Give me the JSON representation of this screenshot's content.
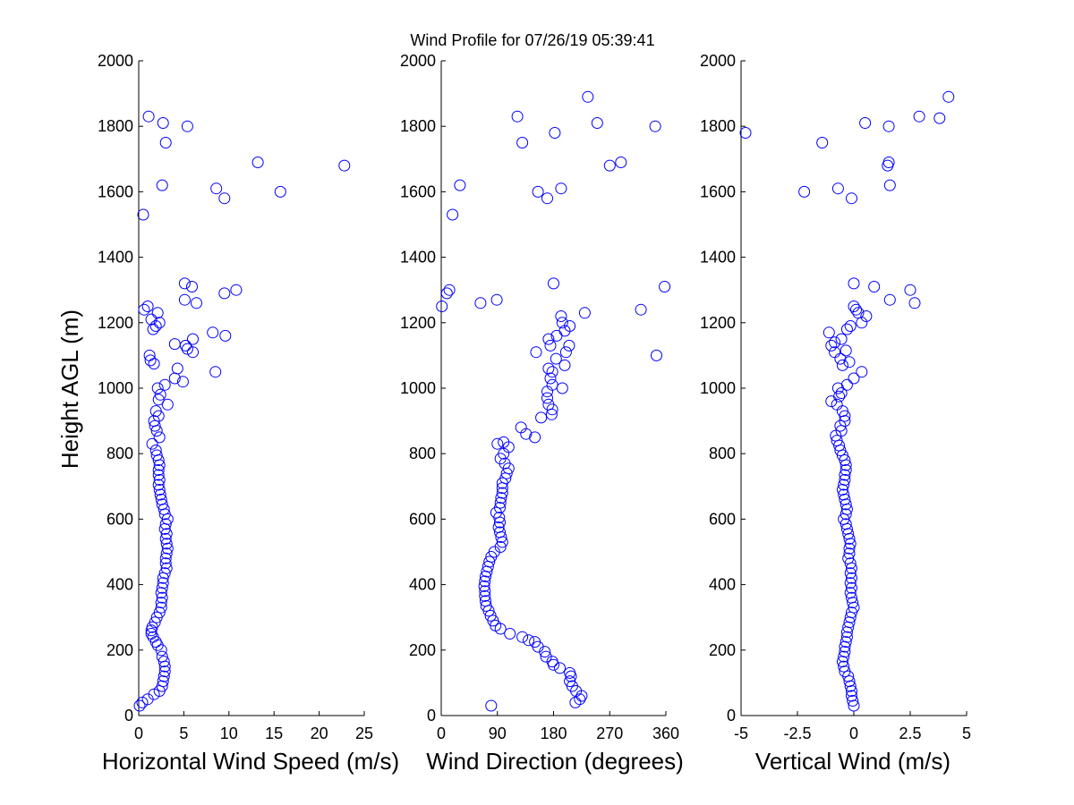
{
  "title": "Wind Profile for  07/26/19 05:39:41",
  "chart_data": [
    {
      "type": "scatter",
      "name": "speed",
      "xlabel": "Horizontal Wind Speed (m/s)",
      "ylabel": "Height AGL (m)",
      "xlim": [
        0,
        25
      ],
      "ylim": [
        0,
        2000
      ],
      "xticks": [
        0,
        5,
        10,
        15,
        20,
        25
      ],
      "xtick_labels": [
        "0",
        "5",
        "10",
        "15",
        "20",
        "25"
      ],
      "yticks": [
        0,
        200,
        400,
        600,
        800,
        1000,
        1200,
        1400,
        1600,
        1800,
        2000
      ],
      "ytick_labels": [
        "0",
        "200",
        "400",
        "600",
        "800",
        "1000",
        "1200",
        "1400",
        "1600",
        "1800",
        "2000"
      ],
      "marker_color": "#0000ff",
      "points": [
        [
          0.1,
          30
        ],
        [
          0.4,
          40
        ],
        [
          1,
          50
        ],
        [
          1.7,
          65
        ],
        [
          2.3,
          75
        ],
        [
          2.6,
          90
        ],
        [
          2.7,
          105
        ],
        [
          2.8,
          120
        ],
        [
          2.9,
          135
        ],
        [
          2.9,
          150
        ],
        [
          2.8,
          165
        ],
        [
          2.6,
          180
        ],
        [
          2.5,
          200
        ],
        [
          2.1,
          215
        ],
        [
          1.9,
          225
        ],
        [
          1.6,
          240
        ],
        [
          1.4,
          250
        ],
        [
          1.4,
          260
        ],
        [
          1.5,
          270
        ],
        [
          1.8,
          285
        ],
        [
          2,
          300
        ],
        [
          2.3,
          315
        ],
        [
          2.5,
          330
        ],
        [
          2.5,
          345
        ],
        [
          2.6,
          360
        ],
        [
          2.5,
          375
        ],
        [
          2.6,
          390
        ],
        [
          2.7,
          405
        ],
        [
          2.7,
          420
        ],
        [
          2.9,
          435
        ],
        [
          3.1,
          450
        ],
        [
          3,
          465
        ],
        [
          3,
          480
        ],
        [
          3.1,
          495
        ],
        [
          3.2,
          510
        ],
        [
          3.1,
          525
        ],
        [
          3,
          540
        ],
        [
          3.1,
          555
        ],
        [
          2.9,
          570
        ],
        [
          3,
          585
        ],
        [
          3.2,
          600
        ],
        [
          2.9,
          615
        ],
        [
          2.8,
          630
        ],
        [
          2.6,
          645
        ],
        [
          2.5,
          660
        ],
        [
          2.4,
          675
        ],
        [
          2.3,
          690
        ],
        [
          2.2,
          705
        ],
        [
          2.3,
          720
        ],
        [
          2.2,
          735
        ],
        [
          2.2,
          750
        ],
        [
          2.3,
          765
        ],
        [
          2.2,
          780
        ],
        [
          2,
          795
        ],
        [
          1.9,
          810
        ],
        [
          1.5,
          830
        ],
        [
          2.3,
          850
        ],
        [
          2,
          870
        ],
        [
          1.8,
          885
        ],
        [
          1.7,
          900
        ],
        [
          2.2,
          915
        ],
        [
          1.9,
          930
        ],
        [
          3.2,
          950
        ],
        [
          2.2,
          965
        ],
        [
          2.4,
          980
        ],
        [
          2.1,
          1000
        ],
        [
          2.9,
          1010
        ],
        [
          4.9,
          1020
        ],
        [
          4,
          1030
        ],
        [
          8.5,
          1050
        ],
        [
          4.3,
          1060
        ],
        [
          1.7,
          1075
        ],
        [
          1.3,
          1085
        ],
        [
          1.2,
          1100
        ],
        [
          6,
          1110
        ],
        [
          5.4,
          1120
        ],
        [
          5.2,
          1130
        ],
        [
          4,
          1135
        ],
        [
          6,
          1150
        ],
        [
          9.6,
          1160
        ],
        [
          8.2,
          1170
        ],
        [
          1.6,
          1180
        ],
        [
          1.9,
          1190
        ],
        [
          2.3,
          1200
        ],
        [
          1.4,
          1210
        ],
        [
          2.1,
          1230
        ],
        [
          0.6,
          1240
        ],
        [
          1,
          1250
        ],
        [
          6.4,
          1260
        ],
        [
          5.1,
          1270
        ],
        [
          9.5,
          1290
        ],
        [
          10.8,
          1300
        ],
        [
          5.9,
          1310
        ],
        [
          5.1,
          1320
        ],
        [
          0.5,
          1530
        ],
        [
          9.5,
          1580
        ],
        [
          15.7,
          1600
        ],
        [
          8.6,
          1610
        ],
        [
          2.6,
          1620
        ],
        [
          22.8,
          1680
        ],
        [
          13.2,
          1690
        ],
        [
          3,
          1750
        ],
        [
          5.4,
          1800
        ],
        [
          2.7,
          1810
        ],
        [
          1.1,
          1830
        ]
      ]
    },
    {
      "type": "scatter",
      "name": "direction",
      "xlabel": "Wind Direction (degrees)",
      "ylabel": "",
      "xlim": [
        0,
        360
      ],
      "ylim": [
        0,
        2000
      ],
      "xticks": [
        0,
        90,
        180,
        270,
        360
      ],
      "xtick_labels": [
        "0",
        "90",
        "180",
        "270",
        "360"
      ],
      "yticks": [
        0,
        200,
        400,
        600,
        800,
        1000,
        1200,
        1400,
        1600,
        1800,
        2000
      ],
      "ytick_labels": [
        "0",
        "200",
        "400",
        "600",
        "800",
        "1000",
        "1200",
        "1400",
        "1600",
        "1800",
        "2000"
      ],
      "marker_color": "#0000ff",
      "points": [
        [
          80,
          30
        ],
        [
          215,
          40
        ],
        [
          222,
          50
        ],
        [
          225,
          60
        ],
        [
          216,
          75
        ],
        [
          210,
          90
        ],
        [
          206,
          105
        ],
        [
          208,
          120
        ],
        [
          206,
          130
        ],
        [
          190,
          145
        ],
        [
          180,
          155
        ],
        [
          178,
          165
        ],
        [
          168,
          180
        ],
        [
          166,
          195
        ],
        [
          155,
          210
        ],
        [
          140,
          230
        ],
        [
          150,
          225
        ],
        [
          130,
          240
        ],
        [
          110,
          250
        ],
        [
          95,
          265
        ],
        [
          87,
          275
        ],
        [
          83,
          290
        ],
        [
          79,
          305
        ],
        [
          76,
          320
        ],
        [
          72,
          335
        ],
        [
          71,
          350
        ],
        [
          70,
          365
        ],
        [
          70,
          380
        ],
        [
          69,
          395
        ],
        [
          70,
          410
        ],
        [
          71,
          425
        ],
        [
          73,
          440
        ],
        [
          75,
          455
        ],
        [
          77,
          470
        ],
        [
          80,
          485
        ],
        [
          85,
          500
        ],
        [
          95,
          515
        ],
        [
          98,
          530
        ],
        [
          96,
          545
        ],
        [
          94,
          560
        ],
        [
          92,
          575
        ],
        [
          94,
          590
        ],
        [
          93,
          605
        ],
        [
          88,
          620
        ],
        [
          94,
          635
        ],
        [
          95,
          650
        ],
        [
          96,
          665
        ],
        [
          98,
          680
        ],
        [
          98,
          695
        ],
        [
          98,
          710
        ],
        [
          103,
          725
        ],
        [
          105,
          740
        ],
        [
          108,
          755
        ],
        [
          102,
          770
        ],
        [
          95,
          785
        ],
        [
          100,
          800
        ],
        [
          108,
          820
        ],
        [
          100,
          835
        ],
        [
          90,
          830
        ],
        [
          150,
          850
        ],
        [
          136,
          860
        ],
        [
          128,
          880
        ],
        [
          160,
          910
        ],
        [
          177,
          920
        ],
        [
          178,
          935
        ],
        [
          172,
          950
        ],
        [
          170,
          970
        ],
        [
          170,
          990
        ],
        [
          194,
          1000
        ],
        [
          178,
          1010
        ],
        [
          175,
          1030
        ],
        [
          178,
          1050
        ],
        [
          172,
          1060
        ],
        [
          198,
          1070
        ],
        [
          184,
          1090
        ],
        [
          200,
          1110
        ],
        [
          152,
          1110
        ],
        [
          175,
          1130
        ],
        [
          205,
          1130
        ],
        [
          172,
          1150
        ],
        [
          185,
          1160
        ],
        [
          198,
          1175
        ],
        [
          206,
          1190
        ],
        [
          194,
          1200
        ],
        [
          192,
          1220
        ],
        [
          230,
          1230
        ],
        [
          1,
          1250
        ],
        [
          63,
          1260
        ],
        [
          89,
          1270
        ],
        [
          9,
          1290
        ],
        [
          13,
          1300
        ],
        [
          180,
          1320
        ],
        [
          320,
          1240
        ],
        [
          345,
          1100
        ],
        [
          358,
          1310
        ],
        [
          18,
          1530
        ],
        [
          170,
          1580
        ],
        [
          155,
          1600
        ],
        [
          192,
          1610
        ],
        [
          30,
          1620
        ],
        [
          270,
          1680
        ],
        [
          288,
          1690
        ],
        [
          130,
          1750
        ],
        [
          182,
          1780
        ],
        [
          122,
          1830
        ],
        [
          250,
          1810
        ],
        [
          343,
          1800
        ],
        [
          235,
          1890
        ]
      ]
    },
    {
      "type": "scatter",
      "name": "vertical",
      "xlabel": "Vertical Wind (m/s)",
      "ylabel": "",
      "xlim": [
        -5,
        5
      ],
      "ylim": [
        0,
        2000
      ],
      "xticks": [
        -5,
        -2.5,
        0,
        2.5,
        5
      ],
      "xtick_labels": [
        "-5",
        "-2.5",
        "0",
        "2.5",
        "5"
      ],
      "yticks": [
        0,
        200,
        400,
        600,
        800,
        1000,
        1200,
        1400,
        1600,
        1800,
        2000
      ],
      "ytick_labels": [
        "0",
        "200",
        "400",
        "600",
        "800",
        "1000",
        "1200",
        "1400",
        "1600",
        "1800",
        "2000"
      ],
      "marker_color": "#0000ff",
      "points": [
        [
          0,
          30
        ],
        [
          -0.05,
          45
        ],
        [
          -0.1,
          60
        ],
        [
          -0.1,
          75
        ],
        [
          -0.15,
          90
        ],
        [
          -0.2,
          105
        ],
        [
          -0.25,
          120
        ],
        [
          -0.4,
          135
        ],
        [
          -0.45,
          150
        ],
        [
          -0.5,
          165
        ],
        [
          -0.45,
          180
        ],
        [
          -0.4,
          195
        ],
        [
          -0.4,
          210
        ],
        [
          -0.35,
          225
        ],
        [
          -0.3,
          240
        ],
        [
          -0.3,
          255
        ],
        [
          -0.25,
          270
        ],
        [
          -0.2,
          285
        ],
        [
          -0.15,
          300
        ],
        [
          -0.1,
          315
        ],
        [
          0,
          330
        ],
        [
          -0.05,
          345
        ],
        [
          -0.1,
          360
        ],
        [
          -0.15,
          375
        ],
        [
          -0.1,
          390
        ],
        [
          -0.15,
          405
        ],
        [
          -0.1,
          420
        ],
        [
          -0.15,
          435
        ],
        [
          -0.1,
          450
        ],
        [
          -0.15,
          465
        ],
        [
          -0.25,
          480
        ],
        [
          -0.2,
          495
        ],
        [
          -0.2,
          510
        ],
        [
          -0.15,
          525
        ],
        [
          -0.2,
          540
        ],
        [
          -0.25,
          555
        ],
        [
          -0.3,
          570
        ],
        [
          -0.35,
          585
        ],
        [
          -0.45,
          600
        ],
        [
          -0.35,
          615
        ],
        [
          -0.3,
          630
        ],
        [
          -0.35,
          645
        ],
        [
          -0.4,
          660
        ],
        [
          -0.45,
          675
        ],
        [
          -0.5,
          690
        ],
        [
          -0.45,
          705
        ],
        [
          -0.4,
          720
        ],
        [
          -0.4,
          735
        ],
        [
          -0.35,
          750
        ],
        [
          -0.35,
          765
        ],
        [
          -0.4,
          780
        ],
        [
          -0.5,
          795
        ],
        [
          -0.6,
          810
        ],
        [
          -0.65,
          825
        ],
        [
          -0.75,
          840
        ],
        [
          -0.8,
          855
        ],
        [
          -0.55,
          870
        ],
        [
          -0.6,
          885
        ],
        [
          -0.4,
          900
        ],
        [
          -0.4,
          915
        ],
        [
          -0.5,
          930
        ],
        [
          -0.75,
          950
        ],
        [
          -1,
          960
        ],
        [
          -0.65,
          975
        ],
        [
          -0.55,
          985
        ],
        [
          -0.7,
          1000
        ],
        [
          -0.3,
          1010
        ],
        [
          0,
          1030
        ],
        [
          0.35,
          1050
        ],
        [
          -0.5,
          1070
        ],
        [
          -0.2,
          1080
        ],
        [
          -0.6,
          1090
        ],
        [
          -0.85,
          1110
        ],
        [
          -0.35,
          1115
        ],
        [
          -1,
          1130
        ],
        [
          -0.85,
          1140
        ],
        [
          -0.55,
          1150
        ],
        [
          -1.1,
          1170
        ],
        [
          -0.3,
          1180
        ],
        [
          -0.15,
          1190
        ],
        [
          0.35,
          1200
        ],
        [
          0.55,
          1220
        ],
        [
          0.2,
          1230
        ],
        [
          0.1,
          1240
        ],
        [
          0,
          1250
        ],
        [
          2.7,
          1260
        ],
        [
          1.6,
          1270
        ],
        [
          2.5,
          1300
        ],
        [
          0.9,
          1310
        ],
        [
          0,
          1320
        ],
        [
          -0.1,
          1580
        ],
        [
          -2.2,
          1600
        ],
        [
          -0.7,
          1610
        ],
        [
          1.6,
          1620
        ],
        [
          1.5,
          1680
        ],
        [
          1.55,
          1690
        ],
        [
          -1.4,
          1750
        ],
        [
          -4.8,
          1780
        ],
        [
          1.55,
          1800
        ],
        [
          0.5,
          1810
        ],
        [
          2.9,
          1830
        ],
        [
          3.8,
          1825
        ],
        [
          4.2,
          1890
        ]
      ]
    }
  ]
}
